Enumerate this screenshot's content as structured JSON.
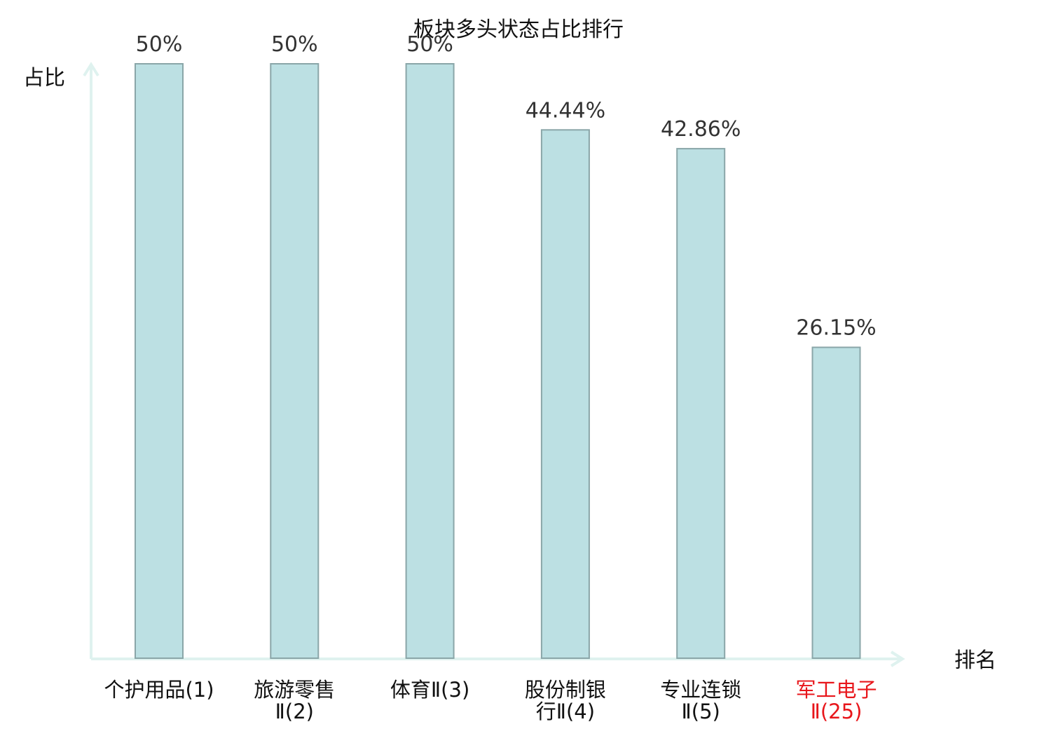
{
  "chart_data": {
    "type": "bar",
    "title": "板块多头状态占比排行",
    "ylabel": "占比",
    "xlabel": "排名",
    "ylim": [
      0,
      50
    ],
    "categories": [
      {
        "line1": "个护用品(1)",
        "line2": "",
        "highlight": false
      },
      {
        "line1": "旅游零售",
        "line2": "Ⅱ(2)",
        "highlight": false
      },
      {
        "line1": "体育Ⅱ(3)",
        "line2": "",
        "highlight": false
      },
      {
        "line1": "股份制银",
        "line2": "行Ⅱ(4)",
        "highlight": false
      },
      {
        "line1": "专业连锁",
        "line2": "Ⅱ(5)",
        "highlight": false
      },
      {
        "line1": "军工电子",
        "line2": "Ⅱ(25)",
        "highlight": true
      }
    ],
    "values": [
      50,
      50,
      50,
      44.44,
      42.86,
      26.15
    ],
    "value_labels": [
      "50%",
      "50%",
      "50%",
      "44.44%",
      "42.86%",
      "26.15%"
    ],
    "colors": {
      "bar_fill": "#bce0e3",
      "bar_stroke": "#8aa6a8",
      "axis": "#dff2ef",
      "label": "#111111",
      "highlight": "#e8161b"
    }
  }
}
